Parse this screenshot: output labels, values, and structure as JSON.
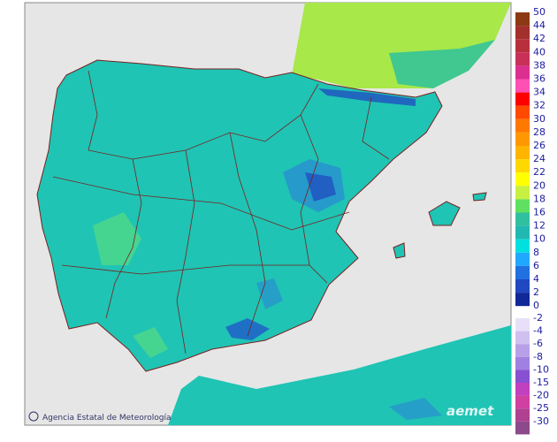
{
  "legend": {
    "positive_ticks": [
      50,
      44,
      42,
      40,
      38,
      36,
      34,
      32,
      30,
      28,
      26,
      24,
      22,
      20,
      18,
      16,
      12,
      10,
      8,
      6,
      4,
      2,
      0
    ],
    "positive_colors": [
      "#8b3a14",
      "#a2302c",
      "#b8303c",
      "#c83058",
      "#dc3090",
      "#ff50b4",
      "#ff0000",
      "#ff4a00",
      "#ff7800",
      "#ff9800",
      "#ffb400",
      "#ffd800",
      "#ffff00",
      "#c8f040",
      "#60e060",
      "#30c0a0",
      "#20b8b0",
      "#00e0e0",
      "#20a8ff",
      "#2070e0",
      "#2048c0",
      "#102898"
    ],
    "negative_ticks": [
      -2,
      -4,
      -6,
      -8,
      -10,
      -15,
      -20,
      -25,
      -30
    ],
    "negative_colors": [
      "#e8e0f8",
      "#d0c0f0",
      "#b8a0e8",
      "#a080e0",
      "#8850d0",
      "#c040c0",
      "#d040a0",
      "#b04090",
      "#8c4a8c"
    ]
  },
  "credit": "Agencia Estatal de Meteorología",
  "logo": "aemet"
}
